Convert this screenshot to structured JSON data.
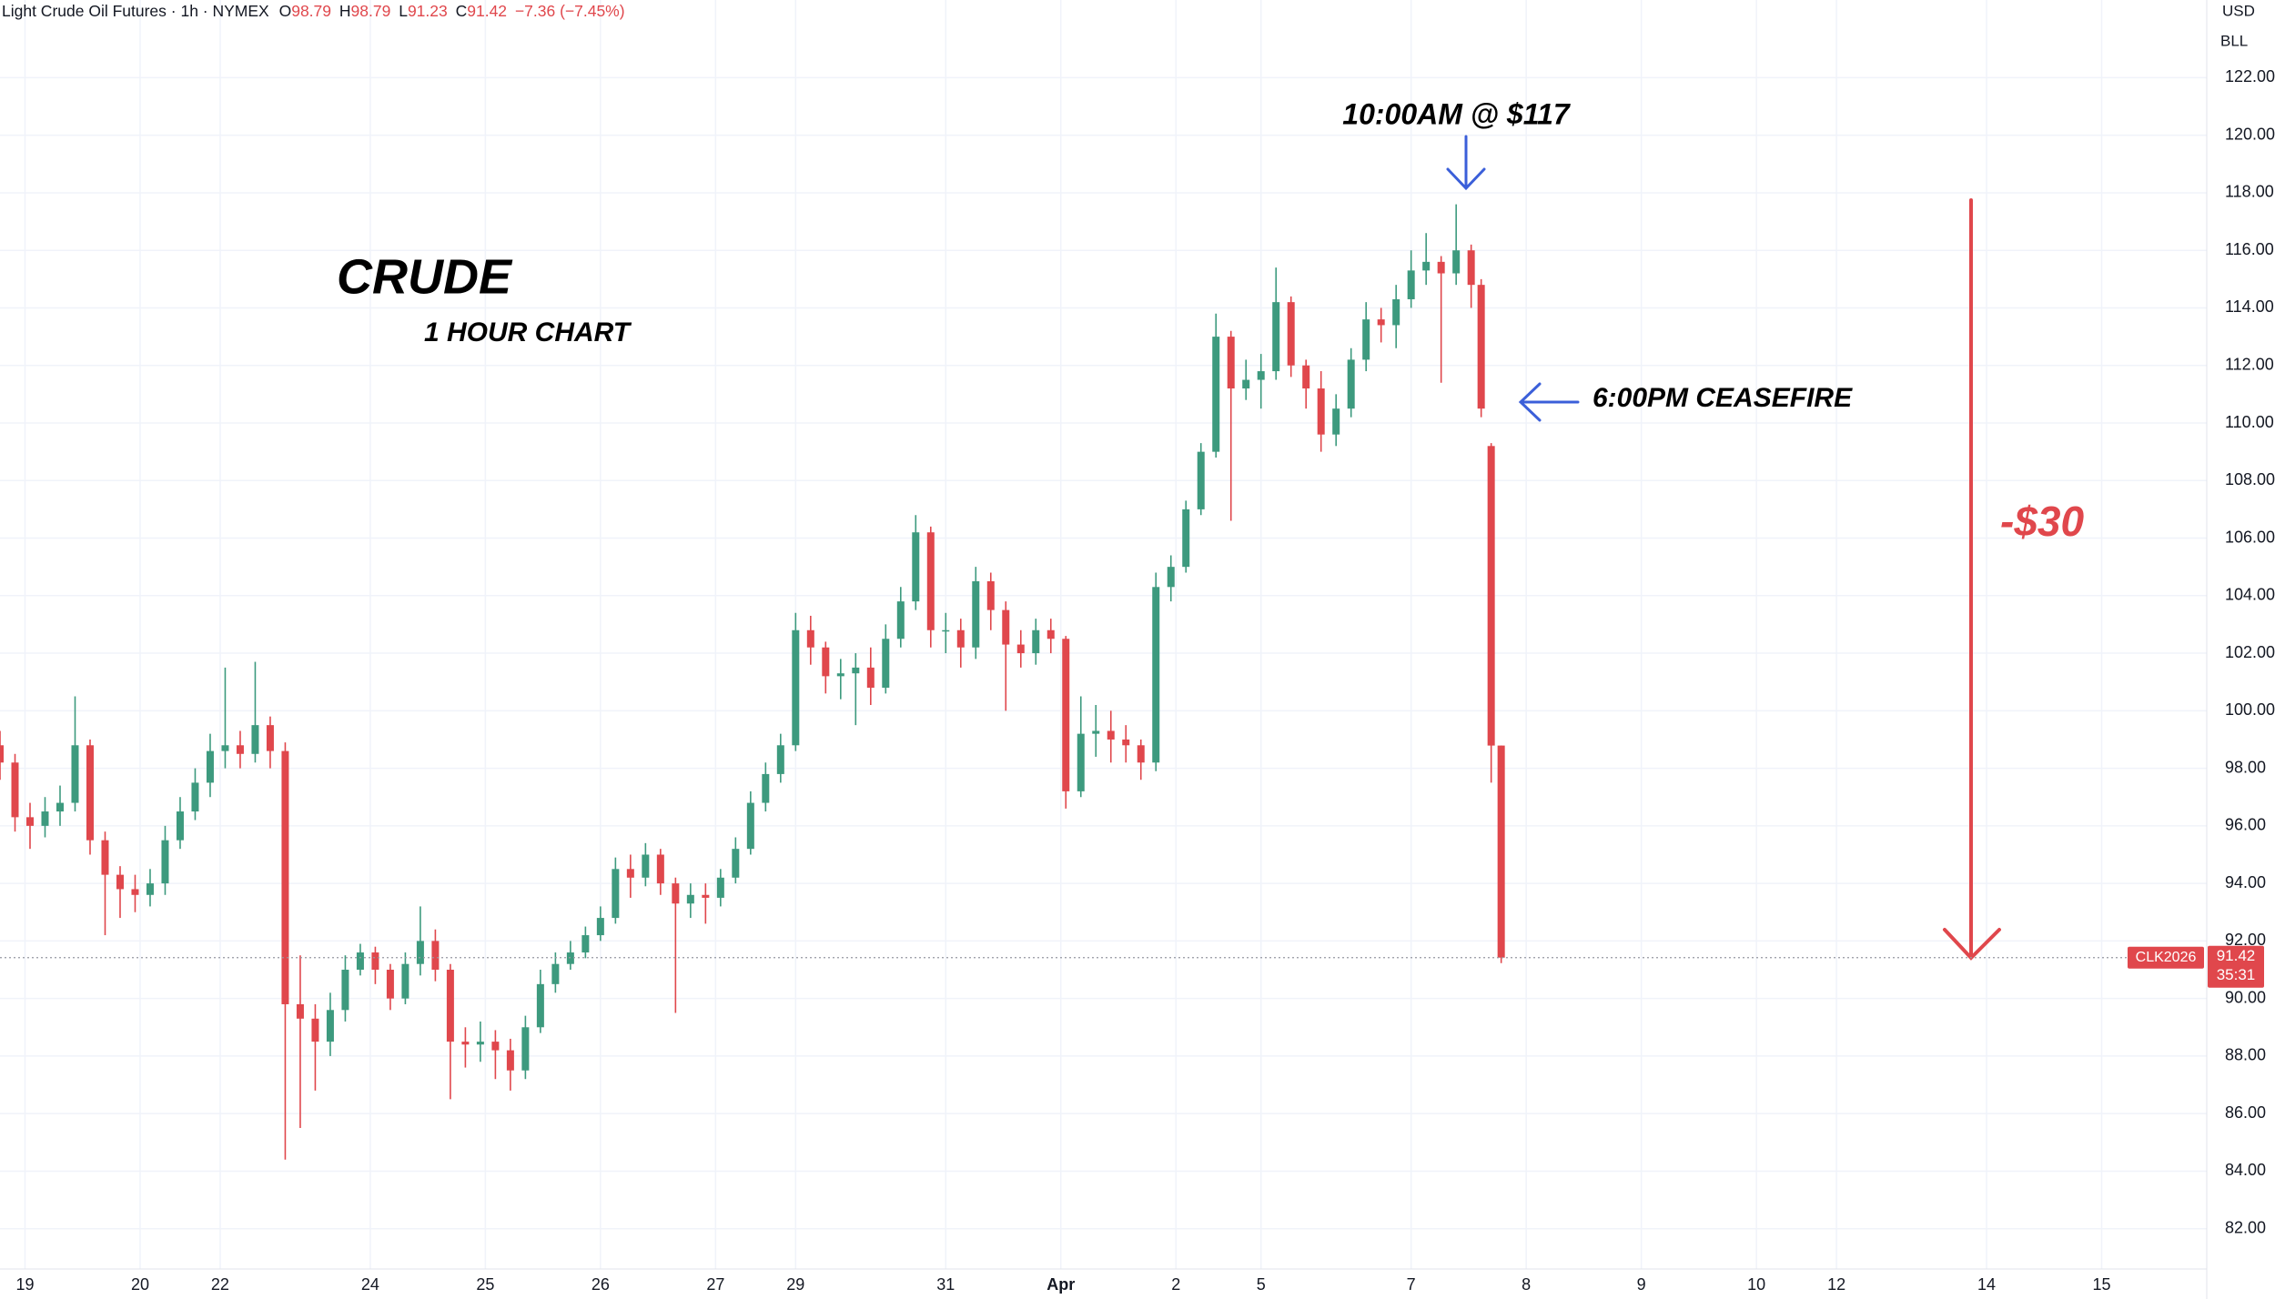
{
  "header": {
    "title": "Light Crude Oil Futures · 1h · NYMEX",
    "ohlc_labels": [
      "O",
      "H",
      "L",
      "C"
    ],
    "change": "−7.36 (−7.45%)"
  },
  "chart_data": {
    "type": "candlestick",
    "x": [
      0,
      3,
      6,
      9,
      12,
      15,
      18,
      21,
      24,
      27,
      30,
      33,
      36,
      39,
      42,
      45,
      48,
      51,
      54,
      57,
      60,
      63,
      66,
      69,
      72,
      75,
      78,
      81,
      84,
      87,
      90,
      93,
      96,
      99,
      102,
      105,
      108,
      111,
      114,
      117,
      120,
      123,
      126,
      129,
      132,
      135,
      138,
      141,
      144,
      147,
      150,
      153,
      156,
      159,
      162,
      165,
      168,
      171,
      174,
      177,
      180,
      183,
      186,
      189,
      192,
      195,
      198,
      201,
      204,
      207,
      210,
      213,
      216,
      219,
      222,
      225,
      228,
      231,
      234,
      237,
      240,
      243,
      246,
      249,
      252,
      255,
      258,
      261,
      264,
      267,
      270,
      273,
      276,
      279,
      282,
      285,
      288,
      291,
      294,
      296,
      298,
      300
    ],
    "open": [
      98.8,
      98.2,
      96.3,
      96.0,
      96.5,
      96.8,
      98.8,
      95.5,
      94.3,
      93.8,
      93.6,
      94.0,
      95.5,
      96.5,
      97.5,
      98.6,
      98.8,
      98.5,
      99.5,
      98.6,
      89.8,
      89.3,
      88.5,
      89.6,
      91.0,
      91.6,
      91.0,
      90.0,
      91.2,
      92.0,
      91.0,
      88.5,
      88.4,
      88.5,
      88.2,
      87.5,
      89.0,
      90.5,
      91.2,
      91.6,
      92.2,
      92.8,
      94.5,
      94.2,
      95.0,
      94.0,
      93.3,
      93.6,
      93.5,
      94.2,
      95.2,
      96.8,
      97.8,
      98.8,
      102.8,
      102.2,
      101.2,
      101.3,
      101.5,
      100.8,
      102.5,
      103.8,
      106.2,
      102.8,
      102.8,
      102.2,
      104.5,
      103.5,
      102.3,
      102.0,
      102.8,
      102.5,
      97.2,
      99.2,
      99.3,
      99.0,
      98.8,
      98.2,
      104.3,
      105.0,
      107.0,
      109.0,
      113.0,
      111.2,
      111.5,
      111.8,
      114.2,
      112.0,
      111.2,
      109.6,
      110.5,
      112.2,
      113.6,
      113.4,
      114.3,
      115.3,
      115.6,
      115.2,
      116.0,
      114.8,
      109.2,
      98.79
    ],
    "high": [
      99.3,
      98.5,
      96.8,
      97.0,
      97.4,
      100.5,
      99.0,
      95.8,
      94.6,
      94.3,
      94.5,
      96.0,
      97.0,
      98.0,
      99.2,
      101.5,
      99.3,
      101.7,
      99.8,
      98.9,
      91.5,
      89.8,
      90.2,
      91.5,
      91.9,
      91.8,
      91.2,
      91.6,
      93.2,
      92.4,
      91.2,
      89.0,
      89.2,
      88.9,
      88.6,
      89.4,
      91.0,
      91.6,
      92.0,
      92.5,
      93.2,
      94.9,
      95.0,
      95.4,
      95.2,
      94.2,
      94.0,
      94.0,
      94.5,
      95.6,
      97.2,
      98.2,
      99.2,
      103.4,
      103.3,
      102.4,
      101.8,
      102.0,
      102.2,
      103.0,
      104.3,
      106.8,
      106.4,
      103.4,
      103.2,
      105.0,
      104.8,
      103.8,
      102.8,
      103.2,
      103.2,
      102.6,
      100.5,
      100.2,
      100.0,
      99.5,
      99.0,
      104.8,
      105.4,
      107.3,
      109.3,
      113.8,
      113.2,
      112.2,
      112.4,
      115.4,
      114.4,
      112.2,
      111.8,
      111.0,
      112.6,
      114.2,
      114.0,
      114.8,
      116.0,
      116.6,
      115.8,
      117.6,
      116.2,
      115.0,
      109.3,
      98.79
    ],
    "low": [
      97.6,
      95.8,
      95.2,
      95.6,
      96.0,
      96.5,
      95.0,
      92.2,
      92.8,
      93.0,
      93.2,
      93.6,
      95.2,
      96.2,
      97.0,
      98.0,
      98.0,
      98.2,
      98.0,
      84.4,
      85.5,
      86.8,
      88.0,
      89.2,
      90.8,
      90.5,
      89.6,
      89.8,
      90.8,
      90.6,
      86.5,
      87.6,
      87.8,
      87.2,
      86.8,
      87.2,
      88.8,
      90.2,
      91.0,
      91.4,
      92.0,
      92.6,
      93.5,
      93.9,
      93.6,
      89.5,
      92.8,
      92.6,
      93.2,
      94.0,
      95.0,
      96.5,
      97.5,
      98.6,
      101.6,
      100.6,
      100.4,
      99.5,
      100.2,
      100.6,
      102.2,
      103.5,
      102.2,
      102.0,
      101.5,
      101.8,
      102.8,
      100.0,
      101.5,
      101.6,
      102.0,
      96.6,
      97.0,
      98.4,
      98.2,
      98.2,
      97.6,
      97.9,
      103.8,
      104.8,
      106.8,
      108.8,
      106.6,
      110.8,
      110.5,
      111.5,
      111.6,
      110.5,
      109.0,
      109.2,
      110.2,
      111.8,
      112.8,
      112.6,
      114.0,
      114.8,
      111.4,
      114.8,
      114.0,
      110.2,
      97.5,
      91.23
    ],
    "close": [
      98.2,
      96.3,
      96.0,
      96.5,
      96.8,
      98.8,
      95.5,
      94.3,
      93.8,
      93.6,
      94.0,
      95.5,
      96.5,
      97.5,
      98.6,
      98.8,
      98.5,
      99.5,
      98.6,
      89.8,
      89.3,
      88.5,
      89.6,
      91.0,
      91.6,
      91.0,
      90.0,
      91.2,
      92.0,
      91.0,
      88.5,
      88.4,
      88.5,
      88.2,
      87.5,
      89.0,
      90.5,
      91.2,
      91.6,
      92.2,
      92.8,
      94.5,
      94.2,
      95.0,
      94.0,
      93.3,
      93.6,
      93.5,
      94.2,
      95.2,
      96.8,
      97.8,
      98.8,
      102.8,
      102.2,
      101.2,
      101.3,
      101.5,
      100.8,
      102.5,
      103.8,
      106.2,
      102.8,
      102.8,
      102.2,
      104.5,
      103.5,
      102.3,
      102.0,
      102.8,
      102.5,
      97.2,
      99.2,
      99.3,
      99.0,
      98.8,
      98.2,
      104.3,
      105.0,
      107.0,
      109.0,
      113.0,
      111.2,
      111.5,
      111.8,
      114.2,
      112.0,
      111.2,
      109.6,
      110.5,
      112.2,
      113.6,
      113.4,
      114.3,
      115.3,
      115.6,
      115.2,
      116.0,
      114.8,
      110.5,
      98.79,
      91.42
    ],
    "up_color": "#3d9a7e",
    "down_color": "#e0474c",
    "xlim": [
      0,
      441
    ],
    "ylim": [
      80.6,
      124.7
    ],
    "xticks": [
      {
        "value": 5,
        "label": "19"
      },
      {
        "value": 28,
        "label": "20"
      },
      {
        "value": 44,
        "label": "22"
      },
      {
        "value": 74,
        "label": "24"
      },
      {
        "value": 97,
        "label": "25"
      },
      {
        "value": 120,
        "label": "26"
      },
      {
        "value": 143,
        "label": "27"
      },
      {
        "value": 159,
        "label": "29"
      },
      {
        "value": 189,
        "label": "31"
      },
      {
        "value": 212,
        "label": "Apr"
      },
      {
        "value": 235,
        "label": "2"
      },
      {
        "value": 252,
        "label": "5"
      },
      {
        "value": 282,
        "label": "7"
      },
      {
        "value": 305,
        "label": "8"
      },
      {
        "value": 328,
        "label": "9"
      },
      {
        "value": 351,
        "label": "10"
      },
      {
        "value": 367,
        "label": "12"
      },
      {
        "value": 397,
        "label": "14"
      },
      {
        "value": 420,
        "label": "15"
      }
    ],
    "yticks": [
      {
        "value": 82,
        "label": "82.00"
      },
      {
        "value": 84,
        "label": "84.00"
      },
      {
        "value": 86,
        "label": "86.00"
      },
      {
        "value": 88,
        "label": "88.00"
      },
      {
        "value": 90,
        "label": "90.00"
      },
      {
        "value": 92,
        "label": "92.00"
      },
      {
        "value": 94,
        "label": "94.00"
      },
      {
        "value": 96,
        "label": "96.00"
      },
      {
        "value": 98,
        "label": "98.00"
      },
      {
        "value": 100,
        "label": "100.00"
      },
      {
        "value": 102,
        "label": "102.00"
      },
      {
        "value": 104,
        "label": "104.00"
      },
      {
        "value": 106,
        "label": "106.00"
      },
      {
        "value": 108,
        "label": "108.00"
      },
      {
        "value": 110,
        "label": "110.00"
      },
      {
        "value": 112,
        "label": "112.00"
      },
      {
        "value": 114,
        "label": "114.00"
      },
      {
        "value": 116,
        "label": "116.00"
      },
      {
        "value": 118,
        "label": "118.00"
      },
      {
        "value": 120,
        "label": "120.00"
      },
      {
        "value": 122,
        "label": "122.00"
      }
    ],
    "grid": true,
    "currency": "USD",
    "unit": "BLL",
    "symbol": "CLK2026",
    "countdown": "35:31",
    "annotations": [
      {
        "text": "CRUDE",
        "color": "#000000"
      },
      {
        "text": "1 HOUR CHART",
        "color": "#000000"
      },
      {
        "text": "10:00AM @ $117",
        "color": "#000000"
      },
      {
        "text": "6:00PM CEASEFIRE",
        "color": "#000000"
      },
      {
        "text": "-$30",
        "color": "#e0474c"
      }
    ]
  }
}
